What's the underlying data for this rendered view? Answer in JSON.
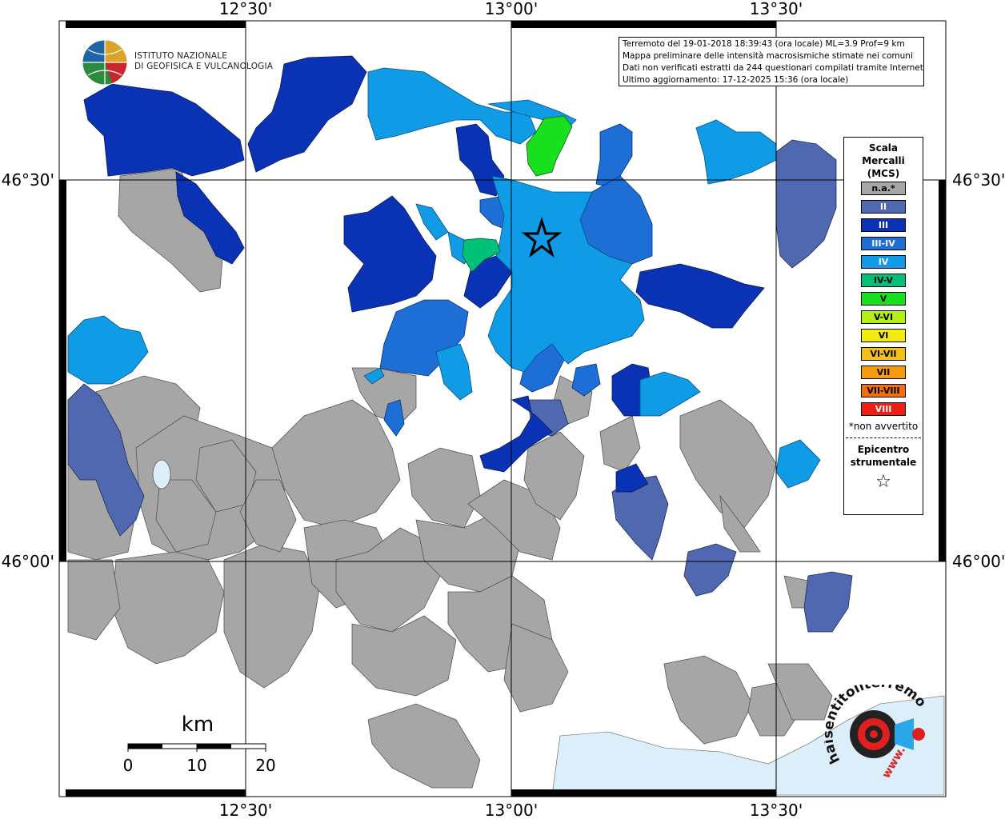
{
  "logo": {
    "name_line1": "ISTITUTO NAZIONALE",
    "name_line2": "DI GEOFISICA E VULCANOLOGIA"
  },
  "info": {
    "line1": "Terremoto del 19-01-2018 18:39:43 (ora locale) ML=3.9 Prof=9 km",
    "line2": "Mappa preliminare delle intensità macrosismiche stimate nei comuni",
    "line3": "Dati non verificati estratti da 244 questionari compilati tramite Internet.",
    "line4": "Ultimo aggiornamento: 17-12-2025 15:36 (ora locale)"
  },
  "coords": {
    "lon_1": "12°30'",
    "lon_2": "13°00'",
    "lon_3": "13°30'",
    "lat_1": "46°30'",
    "lat_2": "46°00'"
  },
  "legend": {
    "title_1": "Scala",
    "title_2": "Mercalli",
    "title_3": "(MCS)",
    "classes": [
      {
        "label": "n.a.*",
        "color": "#a6a6a6"
      },
      {
        "label": "II",
        "color": "#4f68b0"
      },
      {
        "label": "III",
        "color": "#0a32b4"
      },
      {
        "label": "III-IV",
        "color": "#1d6fd6"
      },
      {
        "label": "IV",
        "color": "#0f9be6"
      },
      {
        "label": "IV-V",
        "color": "#00c07a"
      },
      {
        "label": "V",
        "color": "#18e01e"
      },
      {
        "label": "V-VI",
        "color": "#b4f014"
      },
      {
        "label": "VI",
        "color": "#f2ec10"
      },
      {
        "label": "VI-VII",
        "color": "#f4c018"
      },
      {
        "label": "VII",
        "color": "#f59c0e"
      },
      {
        "label": "VII-VIII",
        "color": "#f26e0e"
      },
      {
        "label": "VIII",
        "color": "#ee1e12"
      }
    ],
    "na_note": "*non avvertito",
    "epicenter_1": "Epicentro",
    "epicenter_2": "strumentale",
    "epicenter_symbol": "☆"
  },
  "scale": {
    "unit": "km",
    "tick_0": "0",
    "tick_10": "10",
    "tick_20": "20"
  },
  "brand": {
    "text": "haisentitoilterremoto.it",
    "www": "www."
  },
  "colors": {
    "na": "#a6a6a6",
    "II": "#4f68b0",
    "III": "#0a32b4",
    "III_IV": "#1d6fd6",
    "IV": "#0f9be6",
    "IV_V": "#00c07a",
    "V": "#18e01e",
    "water": "#dbeefa"
  }
}
